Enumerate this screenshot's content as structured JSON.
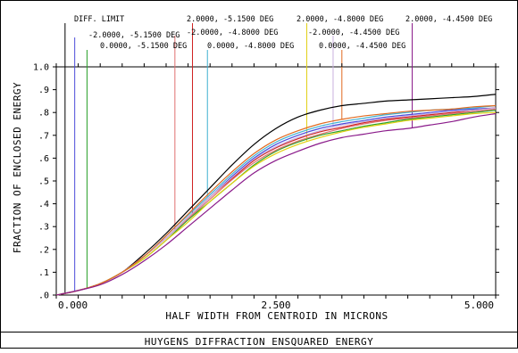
{
  "chart_data": {
    "type": "line",
    "xlabel": "HALF WIDTH FROM CENTROID IN MICRONS",
    "ylabel": "FRACTION OF ENCLOSED ENERGY",
    "footer_title": "HUYGENS DIFFRACTION ENSQUARED ENERGY",
    "xlim": [
      0,
      5.0
    ],
    "ylim": [
      0,
      1.0
    ],
    "x_ticks": [
      {
        "value": 0.0,
        "label": "0.000"
      },
      {
        "value": 2.5,
        "label": "2.500"
      },
      {
        "value": 5.0,
        "label": "5.000"
      }
    ],
    "y_ticks": [
      {
        "value": 1.0,
        "label": "1.0"
      },
      {
        "value": 0.9,
        "label": ".9"
      },
      {
        "value": 0.8,
        "label": ".8"
      },
      {
        "value": 0.7,
        "label": ".7"
      },
      {
        "value": 0.6,
        "label": ".6"
      },
      {
        "value": 0.5,
        "label": ".5"
      },
      {
        "value": 0.4,
        "label": ".4"
      },
      {
        "value": 0.3,
        "label": ".3"
      },
      {
        "value": 0.2,
        "label": ".2"
      },
      {
        "value": 0.1,
        "label": ".1"
      },
      {
        "value": 0.0,
        "label": ".0"
      }
    ],
    "grid": false,
    "series": [
      {
        "name": "DIFF. LIMIT",
        "color": "#000000",
        "marker_x": 0.1,
        "x": [
          0,
          0.25,
          0.5,
          0.75,
          1.0,
          1.25,
          1.5,
          1.75,
          2.0,
          2.25,
          2.5,
          2.75,
          3.0,
          3.25,
          3.5,
          3.75,
          4.0,
          4.25,
          4.5,
          4.75,
          5.0
        ],
        "y": [
          0,
          0.02,
          0.05,
          0.1,
          0.18,
          0.27,
          0.37,
          0.47,
          0.57,
          0.66,
          0.73,
          0.78,
          0.81,
          0.83,
          0.84,
          0.85,
          0.855,
          0.86,
          0.865,
          0.87,
          0.88
        ]
      },
      {
        "name": "-2.0000, -5.1500 DEG",
        "color": "#4a4adb",
        "marker_x": 0.21,
        "x": [
          0,
          0.25,
          0.5,
          0.75,
          1.0,
          1.25,
          1.5,
          1.75,
          2.0,
          2.25,
          2.5,
          2.75,
          3.0,
          3.25,
          3.5,
          3.75,
          4.0,
          4.25,
          4.5,
          4.75,
          5.0
        ],
        "y": [
          0,
          0.02,
          0.05,
          0.1,
          0.17,
          0.25,
          0.34,
          0.43,
          0.52,
          0.6,
          0.66,
          0.7,
          0.73,
          0.75,
          0.765,
          0.78,
          0.79,
          0.8,
          0.81,
          0.815,
          0.82
        ]
      },
      {
        "name": "0.0000, -5.1500 DEG",
        "color": "#2aa02a",
        "marker_x": 0.35,
        "x": [
          0,
          0.25,
          0.5,
          0.75,
          1.0,
          1.25,
          1.5,
          1.75,
          2.0,
          2.25,
          2.5,
          2.75,
          3.0,
          3.25,
          3.5,
          3.75,
          4.0,
          4.25,
          4.5,
          4.75,
          5.0
        ],
        "y": [
          0,
          0.02,
          0.05,
          0.1,
          0.16,
          0.24,
          0.33,
          0.41,
          0.49,
          0.57,
          0.63,
          0.67,
          0.7,
          0.72,
          0.74,
          0.755,
          0.77,
          0.78,
          0.79,
          0.8,
          0.81
        ]
      },
      {
        "name": "2.0000, -5.1500 DEG",
        "color": "#d02020",
        "marker_x": 1.55,
        "x": [
          0,
          0.25,
          0.5,
          0.75,
          1.0,
          1.25,
          1.5,
          1.75,
          2.0,
          2.25,
          2.5,
          2.75,
          3.0,
          3.25,
          3.5,
          3.75,
          4.0,
          4.25,
          4.5,
          4.75,
          5.0
        ],
        "y": [
          0,
          0.02,
          0.05,
          0.1,
          0.17,
          0.25,
          0.34,
          0.43,
          0.51,
          0.59,
          0.645,
          0.685,
          0.715,
          0.735,
          0.755,
          0.77,
          0.78,
          0.79,
          0.8,
          0.81,
          0.82
        ]
      },
      {
        "name": "-2.0000, -4.8000 DEG",
        "color": "#e07070",
        "marker_x": 1.35,
        "x": [
          0,
          0.25,
          0.5,
          0.75,
          1.0,
          1.25,
          1.5,
          1.75,
          2.0,
          2.25,
          2.5,
          2.75,
          3.0,
          3.25,
          3.5,
          3.75,
          4.0,
          4.25,
          4.5,
          4.75,
          5.0
        ],
        "y": [
          0,
          0.02,
          0.05,
          0.1,
          0.17,
          0.25,
          0.335,
          0.42,
          0.505,
          0.58,
          0.635,
          0.675,
          0.705,
          0.73,
          0.75,
          0.765,
          0.775,
          0.785,
          0.795,
          0.805,
          0.815
        ]
      },
      {
        "name": "0.0000, -4.8000 DEG",
        "color": "#40b0d0",
        "marker_x": 1.72,
        "x": [
          0,
          0.25,
          0.5,
          0.75,
          1.0,
          1.25,
          1.5,
          1.75,
          2.0,
          2.25,
          2.5,
          2.75,
          3.0,
          3.25,
          3.5,
          3.75,
          4.0,
          4.25,
          4.5,
          4.75,
          5.0
        ],
        "y": [
          0,
          0.02,
          0.05,
          0.1,
          0.17,
          0.26,
          0.35,
          0.44,
          0.53,
          0.61,
          0.67,
          0.71,
          0.74,
          0.76,
          0.775,
          0.79,
          0.8,
          0.81,
          0.815,
          0.82,
          0.83
        ]
      },
      {
        "name": "2.0000, -4.8000 DEG",
        "color": "#e0d010",
        "marker_x": 2.85,
        "x": [
          0,
          0.25,
          0.5,
          0.75,
          1.0,
          1.25,
          1.5,
          1.75,
          2.0,
          2.25,
          2.5,
          2.75,
          3.0,
          3.25,
          3.5,
          3.75,
          4.0,
          4.25,
          4.5,
          4.75,
          5.0
        ],
        "y": [
          0,
          0.02,
          0.05,
          0.1,
          0.16,
          0.24,
          0.32,
          0.41,
          0.49,
          0.565,
          0.62,
          0.66,
          0.69,
          0.715,
          0.735,
          0.75,
          0.765,
          0.775,
          0.785,
          0.795,
          0.8
        ]
      },
      {
        "name": "-2.0000, -4.4500 DEG",
        "color": "#c8b0e0",
        "marker_x": 3.15,
        "x": [
          0,
          0.25,
          0.5,
          0.75,
          1.0,
          1.25,
          1.5,
          1.75,
          2.0,
          2.25,
          2.5,
          2.75,
          3.0,
          3.25,
          3.5,
          3.75,
          4.0,
          4.25,
          4.5,
          4.75,
          5.0
        ],
        "y": [
          0,
          0.02,
          0.05,
          0.1,
          0.17,
          0.25,
          0.34,
          0.43,
          0.515,
          0.595,
          0.65,
          0.69,
          0.72,
          0.745,
          0.76,
          0.775,
          0.785,
          0.795,
          0.805,
          0.81,
          0.82
        ]
      },
      {
        "name": "0.0000, -4.4500 DEG",
        "color": "#e06a20",
        "marker_x": 3.25,
        "x": [
          0,
          0.25,
          0.5,
          0.75,
          1.0,
          1.25,
          1.5,
          1.75,
          2.0,
          2.25,
          2.5,
          2.75,
          3.0,
          3.25,
          3.5,
          3.75,
          4.0,
          4.25,
          4.5,
          4.75,
          5.0
        ],
        "y": [
          0,
          0.02,
          0.05,
          0.1,
          0.17,
          0.26,
          0.355,
          0.45,
          0.54,
          0.62,
          0.68,
          0.72,
          0.75,
          0.77,
          0.785,
          0.795,
          0.805,
          0.81,
          0.815,
          0.825,
          0.83
        ]
      },
      {
        "name": "2.0000, -4.4500 DEG",
        "color": "#8a1a8a",
        "marker_x": 4.05,
        "x": [
          0,
          0.25,
          0.5,
          0.75,
          1.0,
          1.25,
          1.5,
          1.75,
          2.0,
          2.25,
          2.5,
          2.75,
          3.0,
          3.25,
          3.5,
          3.75,
          4.0,
          4.25,
          4.5,
          4.75,
          5.0
        ],
        "y": [
          0,
          0.02,
          0.045,
          0.09,
          0.15,
          0.22,
          0.3,
          0.38,
          0.46,
          0.535,
          0.59,
          0.63,
          0.665,
          0.69,
          0.705,
          0.72,
          0.73,
          0.745,
          0.76,
          0.78,
          0.795
        ]
      }
    ]
  }
}
